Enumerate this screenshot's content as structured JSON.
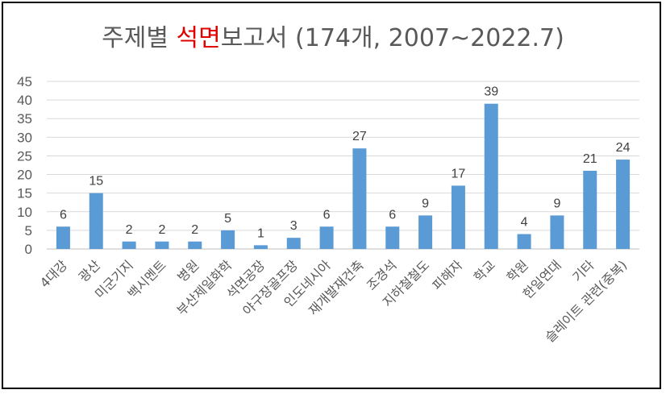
{
  "chart_data": {
    "type": "bar",
    "title": "주제별 석면보고서 (174개, 2007~2022.7)",
    "title_parts": {
      "before": "주제별 ",
      "highlight": "석면",
      "after": "보고서 (174개, 2007~2022.7)"
    },
    "categories": [
      "4대강",
      "광산",
      "미군기지",
      "백시멘트",
      "병원",
      "부산제일화학",
      "석면공장",
      "야구장골프장",
      "인도네시아",
      "재개발재건축",
      "조경석",
      "지하철철도",
      "피해자",
      "학교",
      "학원",
      "한일연대",
      "기타",
      "슬레이트 관련(중복)"
    ],
    "values": [
      6,
      15,
      2,
      2,
      2,
      5,
      1,
      3,
      6,
      27,
      6,
      9,
      17,
      39,
      4,
      9,
      21,
      24
    ],
    "y_ticks": [
      0,
      5,
      10,
      15,
      20,
      25,
      30,
      35,
      40,
      45
    ],
    "ylim": [
      0,
      45
    ],
    "xlabel": "",
    "ylabel": "",
    "grid": true,
    "legend": "none",
    "colors": {
      "bar": "#5b9bd5",
      "grid": "#d9d9d9",
      "title_highlight": "#e00000",
      "title": "#595959"
    }
  }
}
